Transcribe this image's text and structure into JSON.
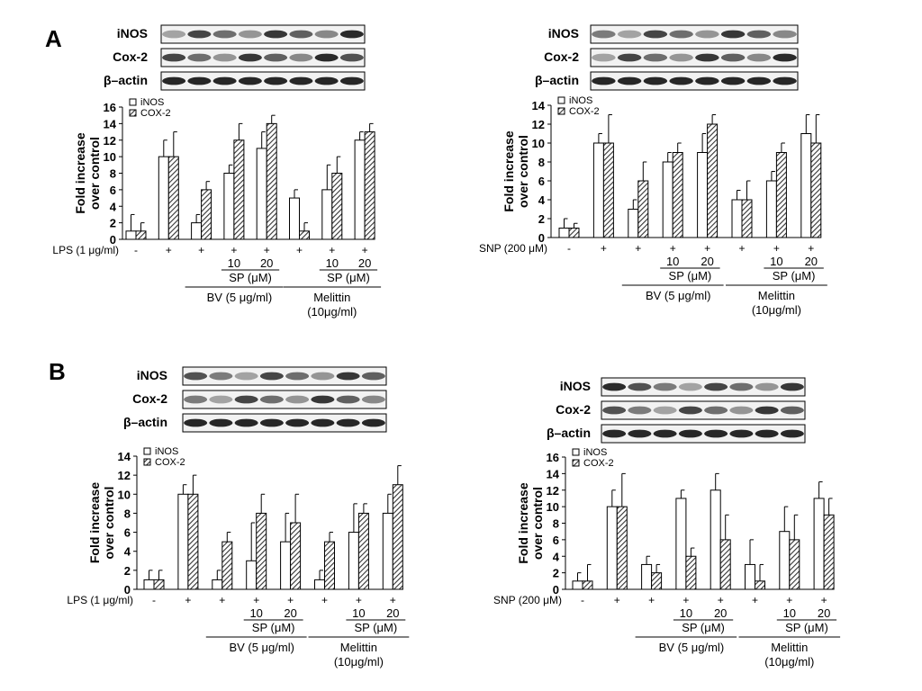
{
  "panel_labels": [
    "A",
    "B"
  ],
  "blot_labels": [
    "iNOS",
    "Cox-2",
    "β–actin"
  ],
  "legend_labels": [
    "iNOS",
    "COX-2"
  ],
  "chart_data": [
    {
      "type": "bar",
      "panel": "A",
      "ylabel_lines": [
        "Fold increase",
        "over control"
      ],
      "ylim": [
        0,
        16
      ],
      "yticks": [
        0,
        2,
        4,
        6,
        8,
        10,
        12,
        14,
        16
      ],
      "categories": [
        "-",
        "+",
        "+",
        "+",
        "+",
        "+",
        "+",
        "+"
      ],
      "treatment_label": "LPS (1 μg/ml)",
      "conc_labels": [
        "10",
        "20",
        "10",
        "20"
      ],
      "sp_label": "SP (μM)",
      "group_labels": [
        "BV (5  μg/ml)",
        "Melittin\n(10μg/ml)"
      ],
      "series": [
        {
          "name": "iNOS",
          "values": [
            1,
            10,
            2,
            8,
            11,
            5,
            6,
            12
          ],
          "errors": [
            2,
            2,
            1,
            1,
            2,
            1,
            3,
            1
          ]
        },
        {
          "name": "COX-2",
          "values": [
            1,
            10,
            6,
            12,
            14,
            1,
            8,
            13
          ],
          "errors": [
            1,
            3,
            1,
            2,
            1,
            1,
            2,
            1
          ]
        }
      ]
    },
    {
      "type": "bar",
      "panel": "A",
      "ylabel_lines": [
        "Fold increase",
        "over control"
      ],
      "ylim": [
        0,
        14
      ],
      "yticks": [
        0,
        2,
        4,
        6,
        8,
        10,
        12,
        14
      ],
      "categories": [
        "-",
        "+",
        "+",
        "+",
        "+",
        "+",
        "+",
        "+"
      ],
      "treatment_label": "SNP (200 μM)",
      "conc_labels": [
        "10",
        "20",
        "10",
        "20"
      ],
      "sp_label": "SP (μM)",
      "group_labels": [
        "BV (5  μg/ml)",
        "Melittin\n(10μg/ml)"
      ],
      "series": [
        {
          "name": "iNOS",
          "values": [
            1,
            10,
            3,
            8,
            9,
            4,
            6,
            11
          ],
          "errors": [
            1,
            1,
            1,
            1,
            2,
            1,
            1,
            2
          ]
        },
        {
          "name": "COX-2",
          "values": [
            1,
            10,
            6,
            9,
            12,
            4,
            9,
            10
          ],
          "errors": [
            0.5,
            3,
            2,
            1,
            1,
            2,
            1,
            3
          ]
        }
      ]
    },
    {
      "type": "bar",
      "panel": "B",
      "ylabel_lines": [
        "Fold increase",
        "over control"
      ],
      "ylim": [
        0,
        14
      ],
      "yticks": [
        0,
        2,
        4,
        6,
        8,
        10,
        12,
        14
      ],
      "categories": [
        "-",
        "+",
        "+",
        "+",
        "+",
        "+",
        "+",
        "+"
      ],
      "treatment_label": "LPS (1 μg/ml)",
      "conc_labels": [
        "10",
        "20",
        "10",
        "20"
      ],
      "sp_label": "SP (μM)",
      "group_labels": [
        "BV (5  μg/ml)",
        "Melittin\n(10μg/ml)"
      ],
      "series": [
        {
          "name": "iNOS",
          "values": [
            1,
            10,
            1,
            3,
            5,
            1,
            6,
            8
          ],
          "errors": [
            1,
            1,
            1,
            4,
            3,
            1,
            3,
            2
          ]
        },
        {
          "name": "COX-2",
          "values": [
            1,
            10,
            5,
            8,
            7,
            5,
            8,
            11
          ],
          "errors": [
            1,
            2,
            1,
            2,
            3,
            1,
            1,
            2
          ]
        }
      ]
    },
    {
      "type": "bar",
      "panel": "B",
      "ylabel_lines": [
        "Fold increase",
        "over control"
      ],
      "ylim": [
        0,
        16
      ],
      "yticks": [
        0,
        2,
        4,
        6,
        8,
        10,
        12,
        14,
        16
      ],
      "categories": [
        "-",
        "+",
        "+",
        "+",
        "+",
        "+",
        "+",
        "+"
      ],
      "treatment_label": "SNP (200 μM)",
      "conc_labels": [
        "10",
        "20",
        "10",
        "20"
      ],
      "sp_label": "SP (μM)",
      "group_labels": [
        "BV (5  μg/ml)",
        "Melittin\n(10μg/ml)"
      ],
      "series": [
        {
          "name": "iNOS",
          "values": [
            1,
            10,
            3,
            11,
            12,
            3,
            7,
            11
          ],
          "errors": [
            1,
            2,
            1,
            1,
            2,
            3,
            3,
            2
          ]
        },
        {
          "name": "COX-2",
          "values": [
            1,
            10,
            2,
            4,
            6,
            1,
            6,
            9
          ],
          "errors": [
            2,
            4,
            1,
            1,
            3,
            2,
            3,
            2
          ]
        }
      ]
    }
  ]
}
